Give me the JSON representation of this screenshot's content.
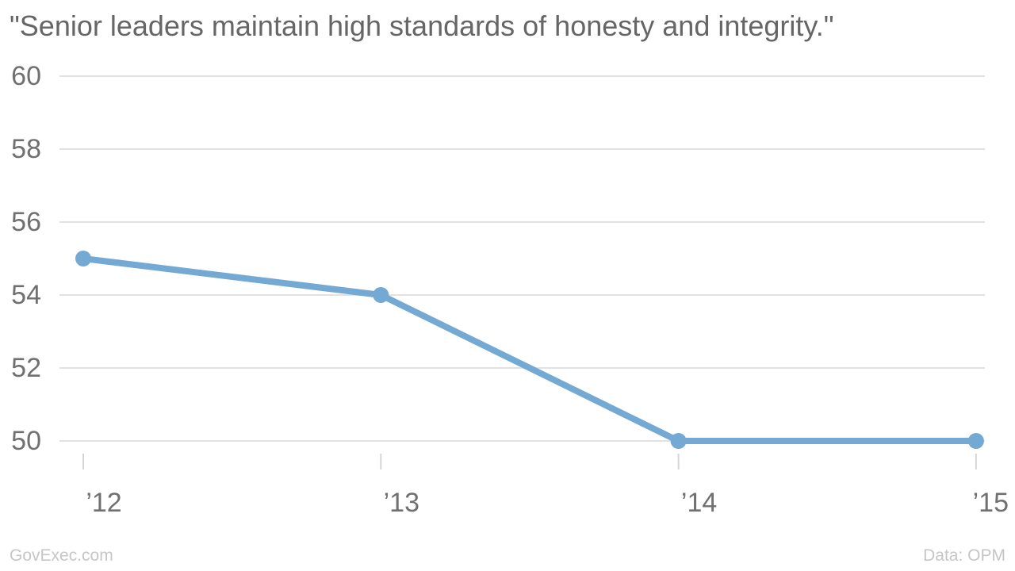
{
  "title": "\"Senior leaders maintain high standards of honesty and integrity.\"",
  "footer": {
    "left": "GovExec.com",
    "right": "Data: OPM"
  },
  "colors": {
    "line": "#74a9d4",
    "title_text": "#666666",
    "axis_label": "#707070",
    "gridline": "#e2e2e2",
    "tick": "#d6d6d6",
    "footer_text": "#c6c6c6",
    "background": "#ffffff"
  },
  "chart_data": {
    "type": "line",
    "title": "\"Senior leaders maintain high standards of honesty and integrity.\"",
    "categories": [
      "’12",
      "’13",
      "’14",
      "’15"
    ],
    "series": [
      {
        "name": "Senior leaders maintain high standards of honesty and integrity",
        "values": [
          55,
          54,
          50,
          50
        ]
      }
    ],
    "values": [
      55,
      54,
      50,
      50
    ],
    "xlabel": "",
    "ylabel": "",
    "ylim": [
      50,
      60
    ],
    "yticks": [
      50,
      52,
      54,
      56,
      58,
      60
    ],
    "grid": "horizontal-only",
    "legend": "none",
    "marker": "circle"
  }
}
